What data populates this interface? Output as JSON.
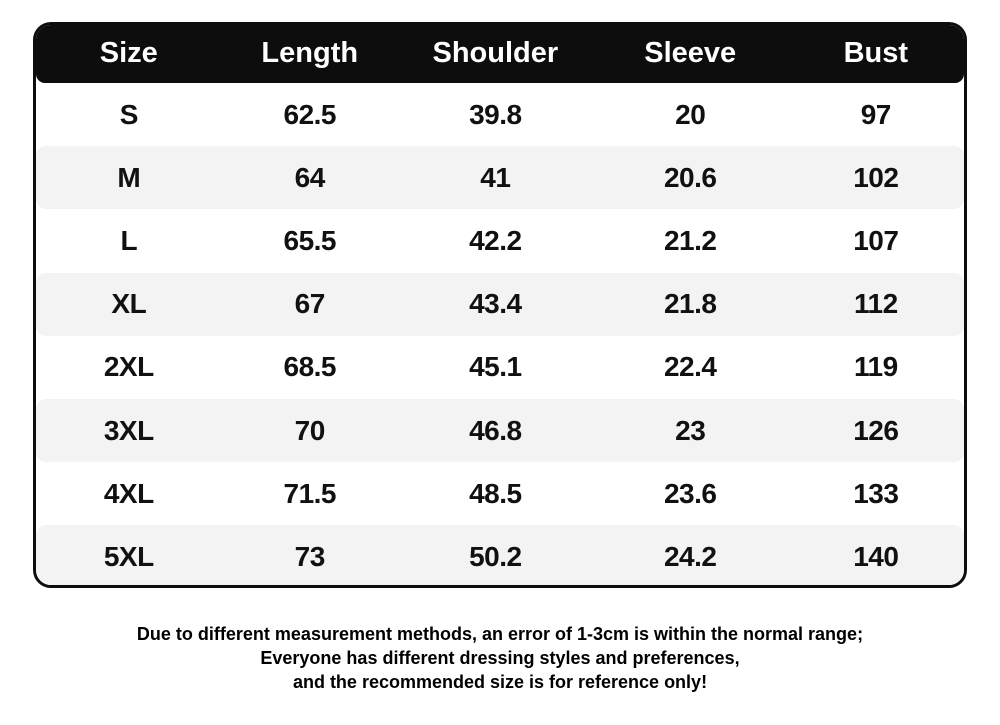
{
  "chart_data": {
    "type": "table",
    "columns": [
      "Size",
      "Length",
      "Shoulder",
      "Sleeve",
      "Bust"
    ],
    "rows": [
      [
        "S",
        "62.5",
        "39.8",
        "20",
        "97"
      ],
      [
        "M",
        "64",
        "41",
        "20.6",
        "102"
      ],
      [
        "L",
        "65.5",
        "42.2",
        "21.2",
        "107"
      ],
      [
        "XL",
        "67",
        "43.4",
        "21.8",
        "112"
      ],
      [
        "2XL",
        "68.5",
        "45.1",
        "22.4",
        "119"
      ],
      [
        "3XL",
        "70",
        "46.8",
        "23",
        "126"
      ],
      [
        "4XL",
        "71.5",
        "48.5",
        "23.6",
        "133"
      ],
      [
        "5XL",
        "73",
        "50.2",
        "24.2",
        "140"
      ]
    ],
    "layout": {
      "header_style": "black bar, white bold text, rounded corners",
      "row_striping": "white / light-gray alternating starting white"
    }
  },
  "footer": {
    "lines": [
      "Due to different measurement methods, an error of 1-3cm is within the normal range;",
      "Everyone has different dressing styles and preferences,",
      "and the recommended size is for reference only!"
    ]
  },
  "colors": {
    "header_bg": "#0d0d0d",
    "header_text": "#ffffff",
    "row_alt_bg": "#f3f3f3",
    "body_text": "#111111",
    "border": "#0d0d0d",
    "page_bg": "#ffffff"
  }
}
